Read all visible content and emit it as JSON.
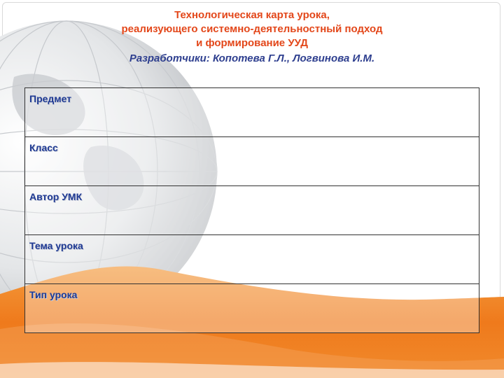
{
  "header": {
    "title_line1": "Технологическая карта урока,",
    "title_line2": "реализующего системно-деятельностный подход",
    "title_line3": "и формирование УУД",
    "authors": "Разработчики: Копотева Г.Л., Логвинова И.М."
  },
  "table": {
    "rows": [
      {
        "label": "Предмет"
      },
      {
        "label": "Класс"
      },
      {
        "label": "Автор УМК"
      },
      {
        "label": "Тема урока"
      },
      {
        "label": "Тип урока"
      }
    ]
  },
  "colors": {
    "title": "#e3471a",
    "authors": "#2e3f8f",
    "row_label": "#1f3a93",
    "orange_band": "#f07a1e",
    "globe": "#d4d6d8"
  }
}
